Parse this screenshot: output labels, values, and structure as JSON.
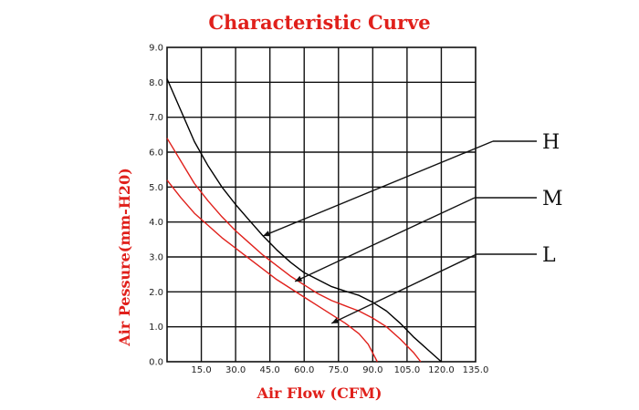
{
  "chart_data": {
    "type": "line",
    "title": "Characteristic Curve",
    "xlabel": "Air Flow (CFM)",
    "ylabel": "Air Pessure(mm-H20)",
    "x_ticks": [
      "15.0",
      "30.0",
      "45.0",
      "60.0",
      "75.0",
      "90.0",
      "105.0",
      "120.0",
      "135.0"
    ],
    "y_ticks": [
      "0.0",
      "1.0",
      "2.0",
      "3.0",
      "4.0",
      "5.0",
      "6.0",
      "7.0",
      "8.0",
      "9.0"
    ],
    "xlim": [
      0,
      135
    ],
    "ylim": [
      0,
      9
    ],
    "grid": true,
    "series": [
      {
        "name": "H",
        "color": "#000000",
        "points": [
          [
            0,
            8.1
          ],
          [
            6,
            7.2
          ],
          [
            12,
            6.3
          ],
          [
            18,
            5.6
          ],
          [
            24,
            5.0
          ],
          [
            30,
            4.5
          ],
          [
            36,
            4.05
          ],
          [
            42,
            3.6
          ],
          [
            48,
            3.2
          ],
          [
            54,
            2.85
          ],
          [
            60,
            2.55
          ],
          [
            66,
            2.35
          ],
          [
            72,
            2.15
          ],
          [
            78,
            2.02
          ],
          [
            84,
            1.9
          ],
          [
            90,
            1.7
          ],
          [
            96,
            1.45
          ],
          [
            102,
            1.1
          ],
          [
            108,
            0.7
          ],
          [
            114,
            0.35
          ],
          [
            120,
            0.0
          ]
        ],
        "label_anchor": [
          42,
          3.6
        ]
      },
      {
        "name": "M",
        "color": "#e0201b",
        "points": [
          [
            0,
            6.4
          ],
          [
            6,
            5.75
          ],
          [
            12,
            5.1
          ],
          [
            18,
            4.6
          ],
          [
            24,
            4.15
          ],
          [
            30,
            3.75
          ],
          [
            36,
            3.4
          ],
          [
            42,
            3.05
          ],
          [
            48,
            2.75
          ],
          [
            54,
            2.45
          ],
          [
            60,
            2.2
          ],
          [
            66,
            1.95
          ],
          [
            72,
            1.75
          ],
          [
            78,
            1.6
          ],
          [
            84,
            1.45
          ],
          [
            90,
            1.25
          ],
          [
            96,
            1.0
          ],
          [
            102,
            0.65
          ],
          [
            108,
            0.25
          ],
          [
            111,
            0.0
          ]
        ],
        "label_anchor": [
          56,
          2.3
        ]
      },
      {
        "name": "L",
        "color": "#e0201b",
        "points": [
          [
            0,
            5.2
          ],
          [
            6,
            4.7
          ],
          [
            12,
            4.25
          ],
          [
            18,
            3.9
          ],
          [
            24,
            3.55
          ],
          [
            30,
            3.25
          ],
          [
            36,
            2.95
          ],
          [
            42,
            2.65
          ],
          [
            48,
            2.35
          ],
          [
            54,
            2.1
          ],
          [
            60,
            1.85
          ],
          [
            66,
            1.6
          ],
          [
            72,
            1.35
          ],
          [
            78,
            1.1
          ],
          [
            84,
            0.8
          ],
          [
            88,
            0.5
          ],
          [
            92,
            0.0
          ]
        ],
        "label_anchor": [
          72,
          1.1
        ]
      }
    ],
    "legend": {
      "placement": "right",
      "entries": [
        "H",
        "M",
        "L"
      ]
    }
  }
}
